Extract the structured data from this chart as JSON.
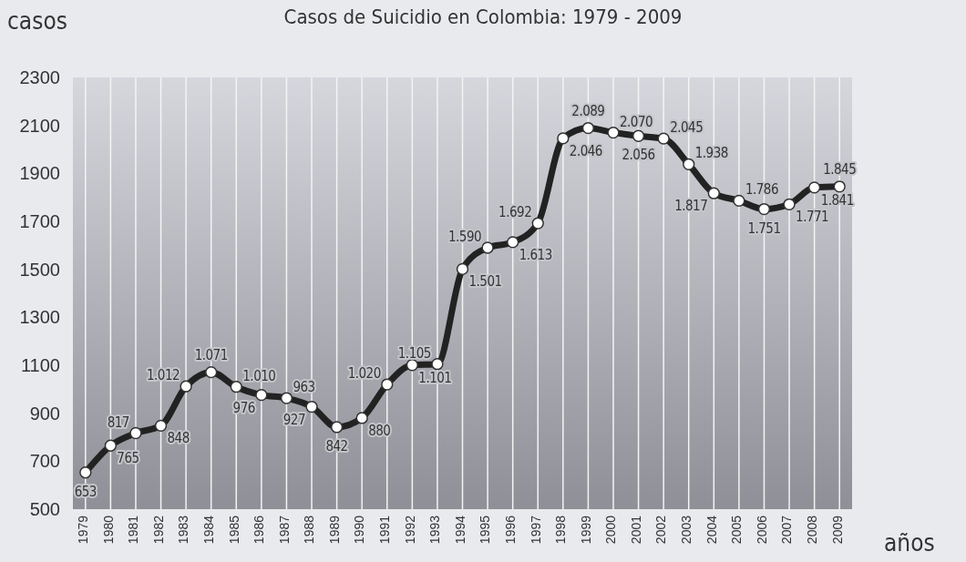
{
  "chart_data": {
    "type": "line",
    "title": "Casos de Suicidio en Colombia: 1979 - 2009",
    "xlabel": "años",
    "ylabel": "casos",
    "categories": [
      "1979",
      "1980",
      "1981",
      "1982",
      "1983",
      "1984",
      "1985",
      "1986",
      "1987",
      "1988",
      "1989",
      "1990",
      "1991",
      "1992",
      "1993",
      "1994",
      "1995",
      "1996",
      "1997",
      "1998",
      "1999",
      "2000",
      "2001",
      "2002",
      "2003",
      "2004",
      "2005",
      "2006",
      "2007",
      "2008",
      "2009"
    ],
    "series": [
      {
        "color": "#222222",
        "values": [
          653,
          765,
          817,
          848,
          1012,
          1071,
          1010,
          976,
          963,
          927,
          842,
          880,
          1020,
          1101,
          1105,
          1501,
          1590,
          1613,
          1692,
          2046,
          2089,
          2070,
          2056,
          2045,
          1938,
          1817,
          1786,
          1751,
          1771,
          1841,
          1845
        ],
        "value_labels": [
          "653",
          "765",
          "817",
          "848",
          "1.012",
          "1.071",
          "1.010",
          "976",
          "963",
          "927",
          "842",
          "880",
          "1.020",
          "1.101",
          "1.105",
          "1.501",
          "1.590",
          "1.613",
          "1.692",
          "2.046",
          "2.089",
          "2.070",
          "2.056",
          "2.045",
          "1.938",
          "1.817",
          "1.786",
          "1.751",
          "1.771",
          "1.841",
          "1.845"
        ]
      }
    ],
    "ylim": [
      500,
      2300
    ],
    "yticks": [
      500,
      700,
      900,
      1100,
      1300,
      1500,
      1700,
      1900,
      2100,
      2300
    ],
    "grid": "x",
    "marker": "circle",
    "line_style": "solid"
  }
}
